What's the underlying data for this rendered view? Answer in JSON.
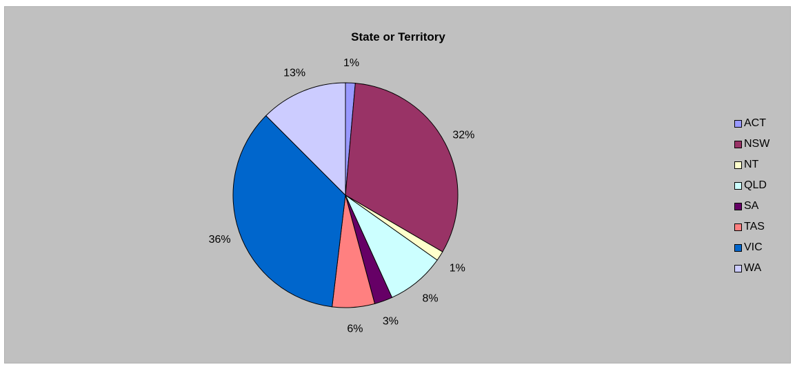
{
  "chart_data": {
    "type": "pie",
    "title": "State or Territory",
    "categories": [
      "ACT",
      "NSW",
      "NT",
      "QLD",
      "SA",
      "TAS",
      "VIC",
      "WA"
    ],
    "values": [
      1.4,
      32.0,
      1.4,
      8.4,
      2.6,
      6.1,
      35.6,
      12.5
    ],
    "labels": [
      "1%",
      "32%",
      "1%",
      "8%",
      "3%",
      "6%",
      "36%",
      "13%"
    ],
    "colors": [
      "#9999ff",
      "#993366",
      "#ffffcc",
      "#ccffff",
      "#660066",
      "#ff8080",
      "#0066cc",
      "#ccccff"
    ],
    "legend_position": "right",
    "start_angle": "12 o'clock, clockwise"
  }
}
